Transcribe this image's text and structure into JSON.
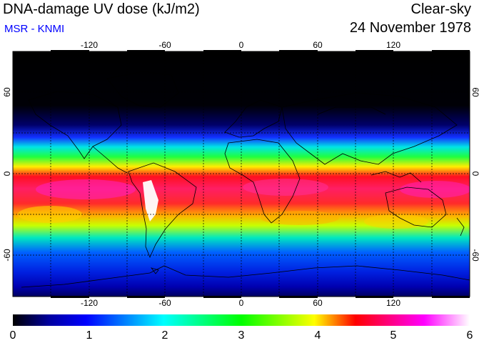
{
  "header": {
    "title": "DNA-damage UV dose (kJ/m2)",
    "subtitle": "MSR - KNMI",
    "condition": "Clear-sky",
    "date": "24 November 1978"
  },
  "map": {
    "lon_ticks": [
      "-120",
      "-60",
      "0",
      "60",
      "120"
    ],
    "lat_ticks": [
      "60",
      "0",
      "-60"
    ],
    "lon_range": [
      -180,
      180
    ],
    "lat_range": [
      -90,
      90
    ],
    "grid": true
  },
  "colorbar": {
    "labels": [
      "0",
      "1",
      "2",
      "3",
      "4",
      "5",
      "6"
    ],
    "range": [
      0,
      6
    ],
    "colors": [
      "#000000",
      "#0000ff",
      "#00ffff",
      "#00ff00",
      "#ffff00",
      "#ff0000",
      "#ff00ff",
      "#ffffff"
    ]
  }
}
